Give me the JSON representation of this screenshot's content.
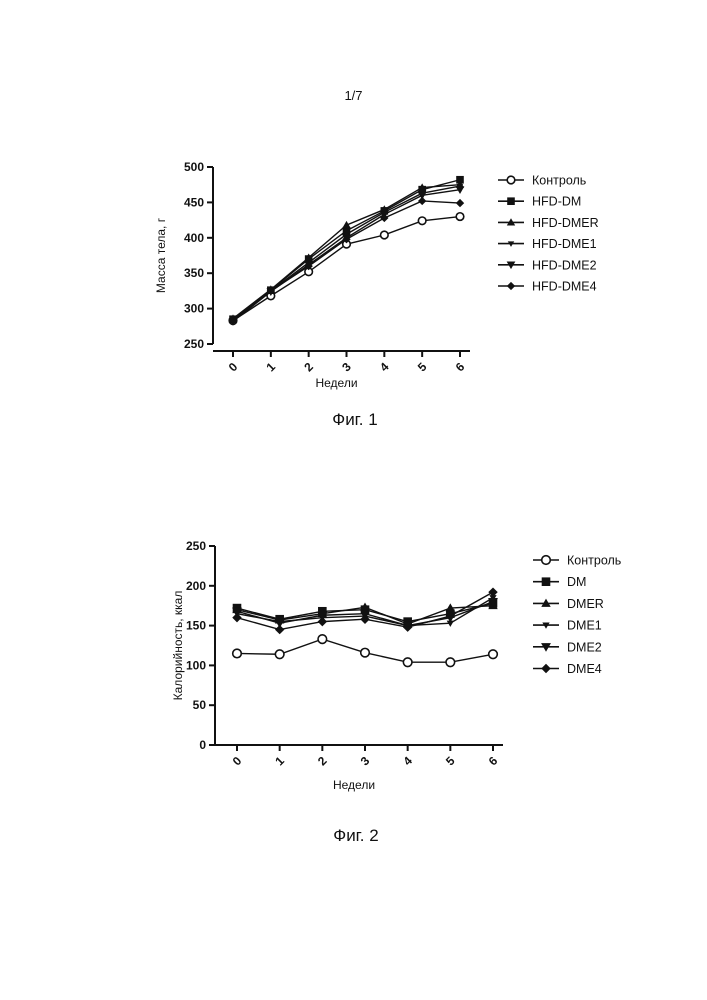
{
  "page_number": "1/7",
  "chart_data": [
    {
      "type": "line",
      "caption": "Фиг. 1",
      "xlabel": "Недели",
      "ylabel": "Масса тела, г",
      "x": [
        0,
        1,
        2,
        3,
        4,
        5,
        6
      ],
      "ylim": [
        250,
        500
      ],
      "yticks": [
        250,
        300,
        350,
        400,
        450,
        500
      ],
      "legend_position": "right",
      "grid": false,
      "series": [
        {
          "name": "Контроль",
          "marker": "circle-open",
          "values": [
            283,
            318,
            352,
            391,
            404,
            424,
            430
          ]
        },
        {
          "name": "HFD-DM",
          "marker": "square",
          "values": [
            285,
            326,
            370,
            410,
            438,
            468,
            482
          ]
        },
        {
          "name": "HFD-DMER",
          "marker": "triangle-up",
          "values": [
            286,
            327,
            372,
            418,
            440,
            471,
            475
          ]
        },
        {
          "name": "HFD-DME1",
          "marker": "triangle-down",
          "values": [
            284,
            325,
            365,
            405,
            436,
            463,
            473
          ]
        },
        {
          "name": "HFD-DME2",
          "marker": "triangle-down-bold",
          "values": [
            282,
            324,
            362,
            400,
            433,
            460,
            468
          ]
        },
        {
          "name": "HFD-DME4",
          "marker": "diamond",
          "values": [
            284,
            325,
            360,
            398,
            428,
            452,
            449
          ]
        }
      ]
    },
    {
      "type": "line",
      "caption": "Фиг. 2",
      "xlabel": "Недели",
      "ylabel": "Калорийность, ккал",
      "x": [
        0,
        1,
        2,
        3,
        4,
        5,
        6
      ],
      "ylim": [
        0,
        250
      ],
      "yticks": [
        0,
        50,
        100,
        150,
        200,
        250
      ],
      "legend_position": "right",
      "grid": false,
      "series": [
        {
          "name": "Контроль",
          "marker": "circle-open",
          "values": [
            115,
            114,
            133,
            116,
            104,
            104,
            114
          ]
        },
        {
          "name": "DM",
          "marker": "square",
          "values": [
            172,
            158,
            168,
            170,
            155,
            165,
            178
          ]
        },
        {
          "name": "DMER",
          "marker": "triangle-up",
          "values": [
            170,
            157,
            165,
            173,
            152,
            172,
            175
          ]
        },
        {
          "name": "DME1",
          "marker": "triangle-down",
          "values": [
            165,
            155,
            160,
            162,
            150,
            153,
            185
          ]
        },
        {
          "name": "DME2",
          "marker": "triangle-down-bold",
          "values": [
            168,
            153,
            163,
            165,
            150,
            160,
            180
          ]
        },
        {
          "name": "DME4",
          "marker": "diamond",
          "values": [
            160,
            145,
            155,
            158,
            148,
            162,
            192
          ]
        }
      ]
    }
  ]
}
